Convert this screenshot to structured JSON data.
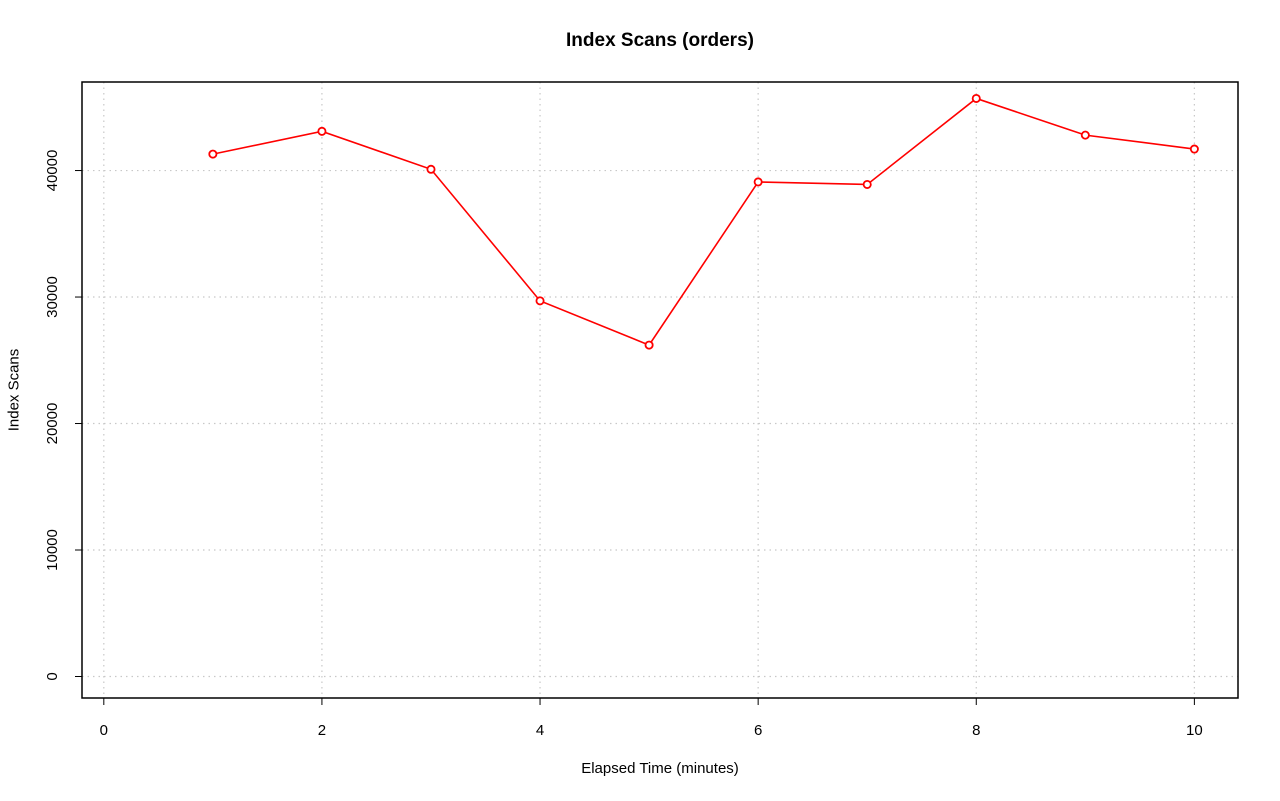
{
  "chart_data": {
    "type": "line",
    "title": "Index Scans (orders)",
    "xlabel": "Elapsed Time (minutes)",
    "ylabel": "Index Scans",
    "xlim": [
      -0.2,
      10.4
    ],
    "ylim": [
      -1700,
      47000
    ],
    "x_ticks": [
      0,
      2,
      4,
      6,
      8,
      10
    ],
    "y_ticks": [
      0,
      10000,
      20000,
      30000,
      40000
    ],
    "grid": true,
    "series": [
      {
        "color": "#ff0000",
        "marker": "open-circle",
        "x": [
          1,
          2,
          3,
          4,
          5,
          6,
          7,
          8,
          9,
          10
        ],
        "y": [
          41300,
          43100,
          40100,
          29700,
          26200,
          39100,
          38900,
          45700,
          42800,
          41700
        ]
      }
    ]
  }
}
